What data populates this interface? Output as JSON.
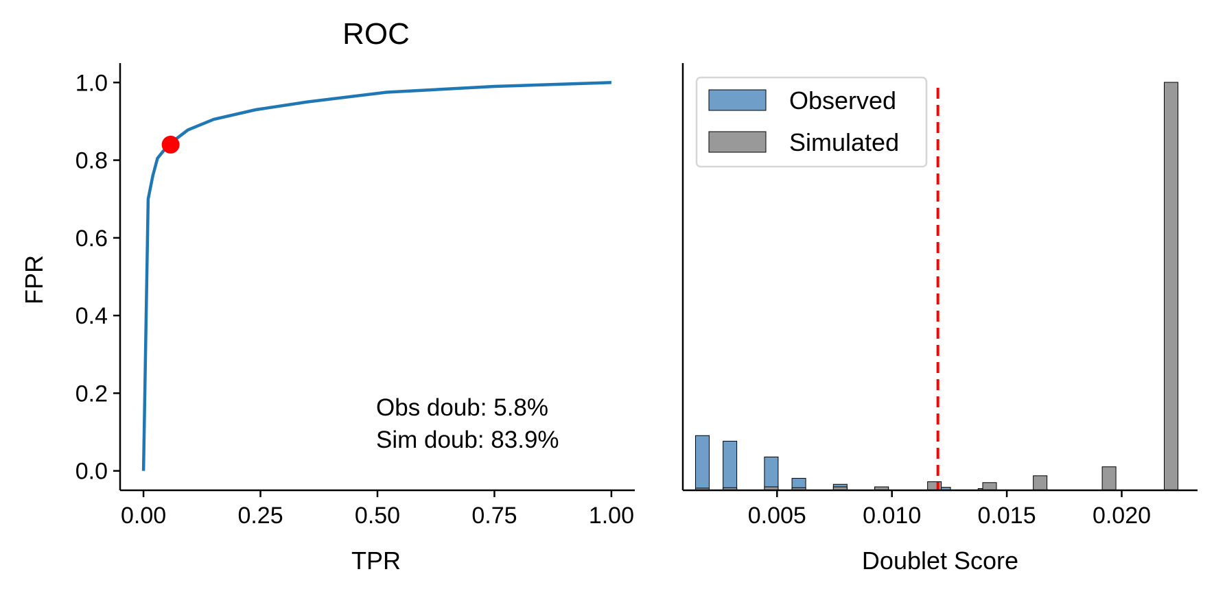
{
  "chart_data": [
    {
      "type": "line",
      "title": "ROC",
      "xlabel": "TPR",
      "ylabel": "FPR",
      "xlim": [
        -0.05,
        1.05
      ],
      "ylim": [
        -0.05,
        1.05
      ],
      "x_ticks": [
        "0.00",
        "0.25",
        "0.50",
        "0.75",
        "1.00"
      ],
      "y_ticks": [
        "0.0",
        "0.2",
        "0.4",
        "0.6",
        "0.8",
        "1.0"
      ],
      "series": [
        {
          "color": "#1f77b4",
          "x": [
            0.0,
            0.005,
            0.01,
            0.02,
            0.03,
            0.05,
            0.07,
            0.095,
            0.15,
            0.24,
            0.35,
            0.52,
            0.75,
            1.0
          ],
          "y": [
            0.0,
            0.35,
            0.7,
            0.76,
            0.805,
            0.835,
            0.855,
            0.878,
            0.905,
            0.93,
            0.95,
            0.975,
            0.99,
            1.0
          ]
        }
      ],
      "marker": {
        "x": 0.058,
        "y": 0.84,
        "color": "#ff0000"
      },
      "annotations": [
        "Obs doub: 5.8%",
        "Sim doub: 83.9%"
      ],
      "grid": false
    },
    {
      "type": "bar",
      "title": "",
      "xlabel": "Doublet Score",
      "ylabel": "",
      "xlim": [
        0.0009,
        0.0233
      ],
      "ylim": [
        0,
        1.0
      ],
      "x_ticks": [
        "0.005",
        "0.010",
        "0.015",
        "0.020"
      ],
      "x_tick_values": [
        0.005,
        0.01,
        0.015,
        0.02
      ],
      "legend": {
        "placement": "top-left",
        "entries": [
          "Observed",
          "Simulated"
        ]
      },
      "threshold": {
        "x": 0.012,
        "color": "#ff0000",
        "style": "dashed"
      },
      "series": [
        {
          "name": "Observed",
          "color": "#6f9fc8",
          "x": [
            0.00175,
            0.00295,
            0.00475,
            0.00595,
            0.00775,
            0.00955,
            0.01225,
            0.01405,
            0.01645,
            0.01945,
            0.02215
          ],
          "values": [
            0.128,
            0.115,
            0.078,
            0.028,
            0.014,
            0.008,
            0.007,
            0.004,
            0.002,
            0.001,
            0.001
          ]
        },
        {
          "name": "Simulated",
          "color": "#999999",
          "x": [
            0.00175,
            0.00295,
            0.00475,
            0.00595,
            0.00775,
            0.00955,
            0.01185,
            0.01425,
            0.01645,
            0.01945,
            0.02215
          ],
          "values": [
            0.005,
            0.006,
            0.008,
            0.006,
            0.008,
            0.008,
            0.02,
            0.018,
            0.034,
            0.055,
            0.955
          ]
        }
      ],
      "grid": false
    }
  ]
}
